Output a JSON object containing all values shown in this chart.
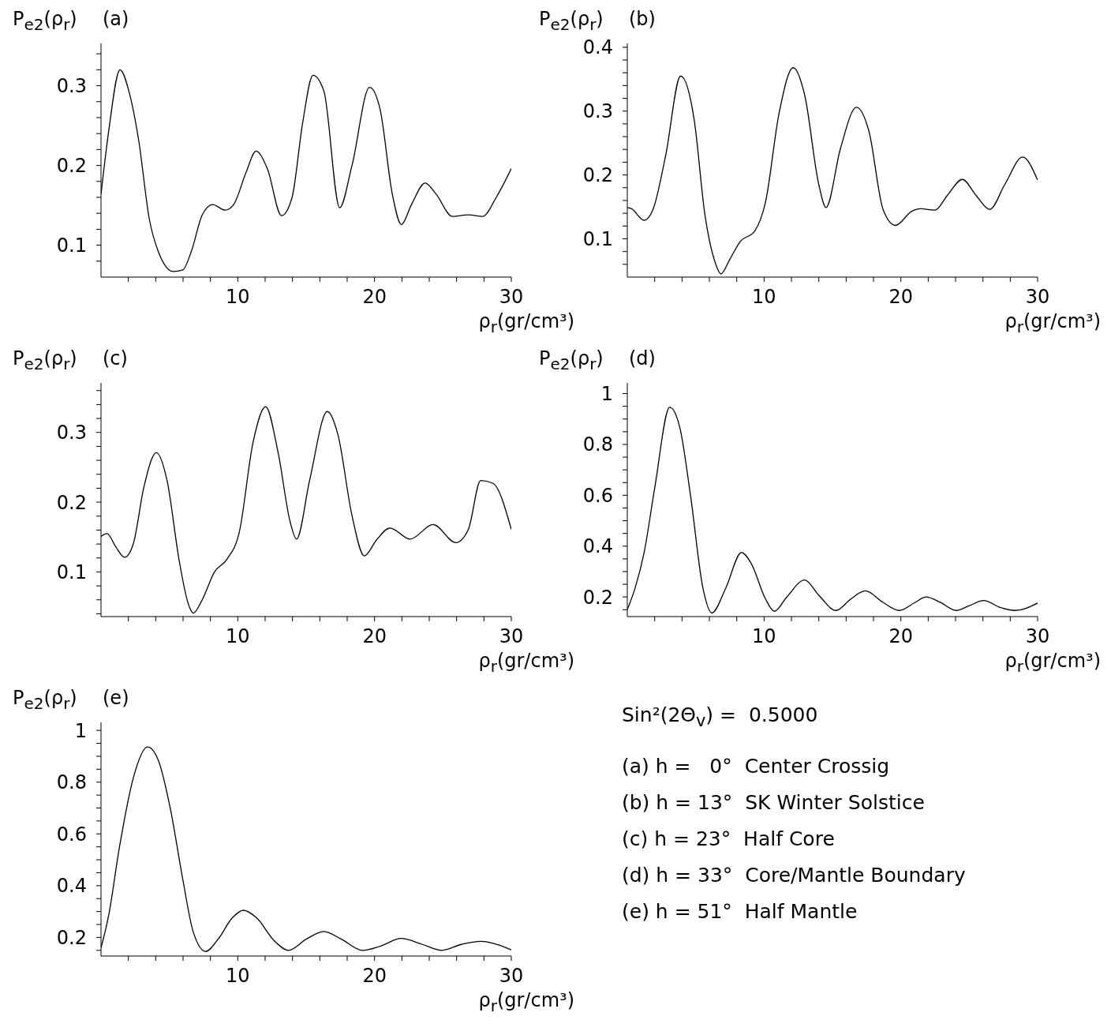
{
  "chart_data": [
    {
      "type": "line",
      "title": "(a)",
      "ylabel": "P$_{e2}$(ρ$_{r}$)",
      "xlabel": "ρ$_{r}$(gr/cm³)",
      "color": "#000000",
      "marker": "none",
      "xlim": [
        0,
        30
      ],
      "ylim": [
        0.06,
        0.353
      ],
      "xticks": [
        {
          "value": 2,
          "label": null
        },
        {
          "value": 4,
          "label": null
        },
        {
          "value": 6,
          "label": null
        },
        {
          "value": 8,
          "label": null
        },
        10,
        {
          "value": 12,
          "label": null
        },
        {
          "value": 14,
          "label": null
        },
        {
          "value": 16,
          "label": null
        },
        {
          "value": 18,
          "label": null
        },
        20,
        {
          "value": 22,
          "label": null
        },
        {
          "value": 24,
          "label": null
        },
        {
          "value": 26,
          "label": null
        },
        {
          "value": 28,
          "label": null
        },
        30
      ],
      "yticks": [
        {
          "value": 0.08,
          "label": null
        },
        0.1,
        {
          "value": 0.12,
          "label": null
        },
        {
          "value": 0.14,
          "label": null
        },
        {
          "value": 0.16,
          "label": null
        },
        {
          "value": 0.18,
          "label": null
        },
        0.2,
        {
          "value": 0.22,
          "label": null
        },
        {
          "value": 0.24,
          "label": null
        },
        {
          "value": 0.26,
          "label": null
        },
        {
          "value": 0.28,
          "label": null
        },
        0.3,
        {
          "value": 0.32,
          "label": null
        },
        {
          "value": 0.34,
          "label": null
        }
      ],
      "x": [
        0,
        0.57,
        1.39,
        2.1,
        2.76,
        3.53,
        4.17,
        5.3,
        5.98,
        6.62,
        7.4,
        8.17,
        9.07,
        9.7,
        10.6,
        11.34,
        12.16,
        13.2,
        13.97,
        14.74,
        15.5,
        16.3,
        17.45,
        18.35,
        19.64,
        20.4,
        21.3,
        21.96,
        22.7,
        23.7,
        24.5,
        25.7,
        26.86,
        27.9,
        28.9,
        30
      ],
      "values": [
        0.164,
        0.244,
        0.32,
        0.289,
        0.231,
        0.133,
        0.093,
        0.067,
        0.069,
        0.093,
        0.138,
        0.151,
        0.144,
        0.151,
        0.191,
        0.218,
        0.196,
        0.137,
        0.16,
        0.253,
        0.313,
        0.293,
        0.147,
        0.2,
        0.298,
        0.271,
        0.164,
        0.126,
        0.151,
        0.178,
        0.164,
        0.136,
        0.138,
        0.136,
        0.16,
        0.196
      ]
    },
    {
      "type": "line",
      "title": "(b)",
      "ylabel": "P$_{e2}$(ρ$_{r}$)",
      "xlabel": "ρ$_{r}$(gr/cm³)",
      "color": "#000000",
      "marker": "none",
      "xlim": [
        0,
        30
      ],
      "ylim": [
        0.04,
        0.406
      ],
      "xticks": [
        {
          "value": 2,
          "label": null
        },
        {
          "value": 4,
          "label": null
        },
        {
          "value": 6,
          "label": null
        },
        {
          "value": 8,
          "label": null
        },
        10,
        {
          "value": 12,
          "label": null
        },
        {
          "value": 14,
          "label": null
        },
        {
          "value": 16,
          "label": null
        },
        {
          "value": 18,
          "label": null
        },
        20,
        {
          "value": 22,
          "label": null
        },
        {
          "value": 24,
          "label": null
        },
        {
          "value": 26,
          "label": null
        },
        {
          "value": 28,
          "label": null
        },
        30
      ],
      "yticks": [
        {
          "value": 0.06,
          "label": null
        },
        {
          "value": 0.08,
          "label": null
        },
        0.1,
        {
          "value": 0.12,
          "label": null
        },
        {
          "value": 0.14,
          "label": null
        },
        {
          "value": 0.16,
          "label": null
        },
        {
          "value": 0.18,
          "label": null
        },
        0.2,
        {
          "value": 0.22,
          "label": null
        },
        {
          "value": 0.24,
          "label": null
        },
        {
          "value": 0.26,
          "label": null
        },
        {
          "value": 0.28,
          "label": null
        },
        0.3,
        {
          "value": 0.32,
          "label": null
        },
        {
          "value": 0.34,
          "label": null
        },
        {
          "value": 0.36,
          "label": null
        },
        {
          "value": 0.38,
          "label": null
        },
        0.4
      ],
      "x": [
        0,
        0.31,
        1.23,
        1.88,
        2.8,
        3.9,
        4.9,
        5.66,
        6.44,
        6.84,
        7.5,
        8.27,
        9.31,
        10.1,
        11.1,
        12.13,
        12.97,
        14.0,
        14.53,
        15.58,
        16.75,
        17.66,
        18.7,
        19.6,
        20.8,
        21.45,
        22.5,
        23.4,
        24.5,
        25.5,
        26.5,
        27.6,
        28.9,
        30
      ],
      "values": [
        0.149,
        0.147,
        0.129,
        0.146,
        0.23,
        0.355,
        0.285,
        0.14,
        0.062,
        0.045,
        0.068,
        0.096,
        0.112,
        0.157,
        0.297,
        0.368,
        0.325,
        0.185,
        0.149,
        0.241,
        0.306,
        0.269,
        0.146,
        0.121,
        0.143,
        0.147,
        0.145,
        0.168,
        0.193,
        0.168,
        0.146,
        0.185,
        0.228,
        0.192
      ]
    },
    {
      "type": "line",
      "title": "(c)",
      "ylabel": "P$_{e2}$(ρ$_{r}$)",
      "xlabel": "ρ$_{r}$(gr/cm³)",
      "color": "#000000",
      "marker": "none",
      "xlim": [
        0,
        30
      ],
      "ylim": [
        0.036,
        0.371
      ],
      "xticks": [
        {
          "value": 2,
          "label": null
        },
        {
          "value": 4,
          "label": null
        },
        {
          "value": 6,
          "label": null
        },
        {
          "value": 8,
          "label": null
        },
        10,
        {
          "value": 12,
          "label": null
        },
        {
          "value": 14,
          "label": null
        },
        {
          "value": 16,
          "label": null
        },
        {
          "value": 18,
          "label": null
        },
        20,
        {
          "value": 22,
          "label": null
        },
        {
          "value": 24,
          "label": null
        },
        {
          "value": 26,
          "label": null
        },
        {
          "value": 28,
          "label": null
        },
        30
      ],
      "yticks": [
        {
          "value": 0.04,
          "label": null
        },
        {
          "value": 0.06,
          "label": null
        },
        {
          "value": 0.08,
          "label": null
        },
        0.1,
        {
          "value": 0.12,
          "label": null
        },
        {
          "value": 0.14,
          "label": null
        },
        {
          "value": 0.16,
          "label": null
        },
        {
          "value": 0.18,
          "label": null
        },
        0.2,
        {
          "value": 0.22,
          "label": null
        },
        {
          "value": 0.24,
          "label": null
        },
        {
          "value": 0.26,
          "label": null
        },
        {
          "value": 0.28,
          "label": null
        },
        0.3,
        {
          "value": 0.32,
          "label": null
        },
        {
          "value": 0.34,
          "label": null
        },
        {
          "value": 0.36,
          "label": null
        }
      ],
      "x": [
        0,
        0.44,
        1.08,
        1.73,
        2.37,
        3.14,
        4.05,
        4.82,
        5.72,
        6.37,
        6.75,
        7.4,
        8.3,
        9.2,
        10.1,
        11.13,
        12.04,
        12.94,
        13.84,
        14.3,
        15.26,
        16.55,
        17.32,
        18.35,
        19.25,
        20.15,
        21.13,
        22.6,
        24.28,
        25.95,
        26.86,
        27.76,
        28.66,
        30
      ],
      "values": [
        0.151,
        0.155,
        0.136,
        0.121,
        0.141,
        0.222,
        0.271,
        0.232,
        0.116,
        0.055,
        0.041,
        0.06,
        0.1,
        0.118,
        0.156,
        0.287,
        0.337,
        0.272,
        0.171,
        0.147,
        0.232,
        0.33,
        0.297,
        0.181,
        0.123,
        0.146,
        0.163,
        0.147,
        0.168,
        0.142,
        0.161,
        0.231,
        0.227,
        0.161
      ]
    },
    {
      "type": "line",
      "title": "(d)",
      "ylabel": "P$_{e2}$(ρ$_{r}$)",
      "xlabel": "ρ$_{r}$(gr/cm³)",
      "color": "#000000",
      "marker": "none",
      "xlim": [
        0,
        30
      ],
      "ylim": [
        0.123,
        1.042
      ],
      "xticks": [
        {
          "value": 2,
          "label": null
        },
        {
          "value": 4,
          "label": null
        },
        {
          "value": 6,
          "label": null
        },
        {
          "value": 8,
          "label": null
        },
        10,
        {
          "value": 12,
          "label": null
        },
        {
          "value": 14,
          "label": null
        },
        {
          "value": 16,
          "label": null
        },
        {
          "value": 18,
          "label": null
        },
        20,
        {
          "value": 22,
          "label": null
        },
        {
          "value": 24,
          "label": null
        },
        {
          "value": 26,
          "label": null
        },
        {
          "value": 28,
          "label": null
        },
        30
      ],
      "yticks": [
        {
          "value": 0.15,
          "label": null
        },
        0.2,
        {
          "value": 0.25,
          "label": null
        },
        {
          "value": 0.3,
          "label": null
        },
        {
          "value": 0.35,
          "label": null
        },
        0.4,
        {
          "value": 0.45,
          "label": null
        },
        {
          "value": 0.5,
          "label": null
        },
        {
          "value": 0.55,
          "label": null
        },
        0.6,
        {
          "value": 0.65,
          "label": null
        },
        {
          "value": 0.7,
          "label": null
        },
        {
          "value": 0.75,
          "label": null
        },
        0.8,
        {
          "value": 0.85,
          "label": null
        },
        {
          "value": 0.9,
          "label": null
        },
        {
          "value": 0.95,
          "label": null
        },
        1
      ],
      "x": [
        0,
        0.57,
        1.23,
        2.0,
        3.1,
        3.84,
        4.62,
        5.53,
        6.18,
        7.2,
        8.35,
        9.05,
        10.1,
        10.75,
        11.66,
        12.97,
        14.0,
        15.26,
        16.36,
        17.4,
        18.7,
        19.88,
        21.05,
        21.84,
        22.88,
        24.05,
        24.97,
        26.06,
        27.3,
        28.36,
        30
      ],
      "values": [
        0.151,
        0.235,
        0.375,
        0.627,
        0.946,
        0.866,
        0.6,
        0.235,
        0.137,
        0.235,
        0.375,
        0.333,
        0.193,
        0.144,
        0.2,
        0.267,
        0.207,
        0.147,
        0.193,
        0.224,
        0.179,
        0.147,
        0.179,
        0.2,
        0.179,
        0.147,
        0.165,
        0.186,
        0.158,
        0.147,
        0.176
      ]
    },
    {
      "type": "line",
      "title": "(e)",
      "ylabel": "P$_{e2}$(ρ$_{r}$)",
      "xlabel": "ρ$_{r}$(gr/cm³)",
      "color": "#000000",
      "marker": "none",
      "xlim": [
        0,
        30
      ],
      "ylim": [
        0.128,
        1.031
      ],
      "xticks": [
        {
          "value": 2,
          "label": null
        },
        {
          "value": 4,
          "label": null
        },
        {
          "value": 6,
          "label": null
        },
        {
          "value": 8,
          "label": null
        },
        10,
        {
          "value": 12,
          "label": null
        },
        {
          "value": 14,
          "label": null
        },
        {
          "value": 16,
          "label": null
        },
        {
          "value": 18,
          "label": null
        },
        20,
        {
          "value": 22,
          "label": null
        },
        {
          "value": 24,
          "label": null
        },
        {
          "value": 26,
          "label": null
        },
        {
          "value": 28,
          "label": null
        },
        30
      ],
      "yticks": [
        {
          "value": 0.15,
          "label": null
        },
        0.2,
        {
          "value": 0.25,
          "label": null
        },
        {
          "value": 0.3,
          "label": null
        },
        {
          "value": 0.35,
          "label": null
        },
        0.4,
        {
          "value": 0.45,
          "label": null
        },
        {
          "value": 0.5,
          "label": null
        },
        {
          "value": 0.55,
          "label": null
        },
        0.6,
        {
          "value": 0.65,
          "label": null
        },
        {
          "value": 0.7,
          "label": null
        },
        {
          "value": 0.75,
          "label": null
        },
        0.8,
        {
          "value": 0.85,
          "label": null
        },
        {
          "value": 0.9,
          "label": null
        },
        {
          "value": 0.95,
          "label": null
        },
        1
      ],
      "x": [
        0,
        0.57,
        1.34,
        2.37,
        3.4,
        4.18,
        5.08,
        5.98,
        6.75,
        7.65,
        8.56,
        9.59,
        10.41,
        11.39,
        12.68,
        13.71,
        15.0,
        16.29,
        17.58,
        19.12,
        20.41,
        21.96,
        23.5,
        24.92,
        26.34,
        27.76,
        29.2,
        30
      ],
      "values": [
        0.159,
        0.288,
        0.546,
        0.818,
        0.936,
        0.886,
        0.695,
        0.424,
        0.22,
        0.146,
        0.193,
        0.275,
        0.305,
        0.275,
        0.186,
        0.15,
        0.193,
        0.223,
        0.193,
        0.15,
        0.166,
        0.196,
        0.173,
        0.15,
        0.173,
        0.185,
        0.169,
        0.152
      ]
    },
    {
      "type": "other",
      "annotations": [
        "Sin²(2Θ$_{v}$) =  0.5000",
        "(a) h =   0°  Center Crossig",
        "(b) h = 13°  SK Winter Solstice",
        "(c) h = 23°  Half Core",
        "(d) h = 33°  Core/Mantle Boundary",
        "(e) h = 51°  Half Mantle"
      ]
    }
  ]
}
